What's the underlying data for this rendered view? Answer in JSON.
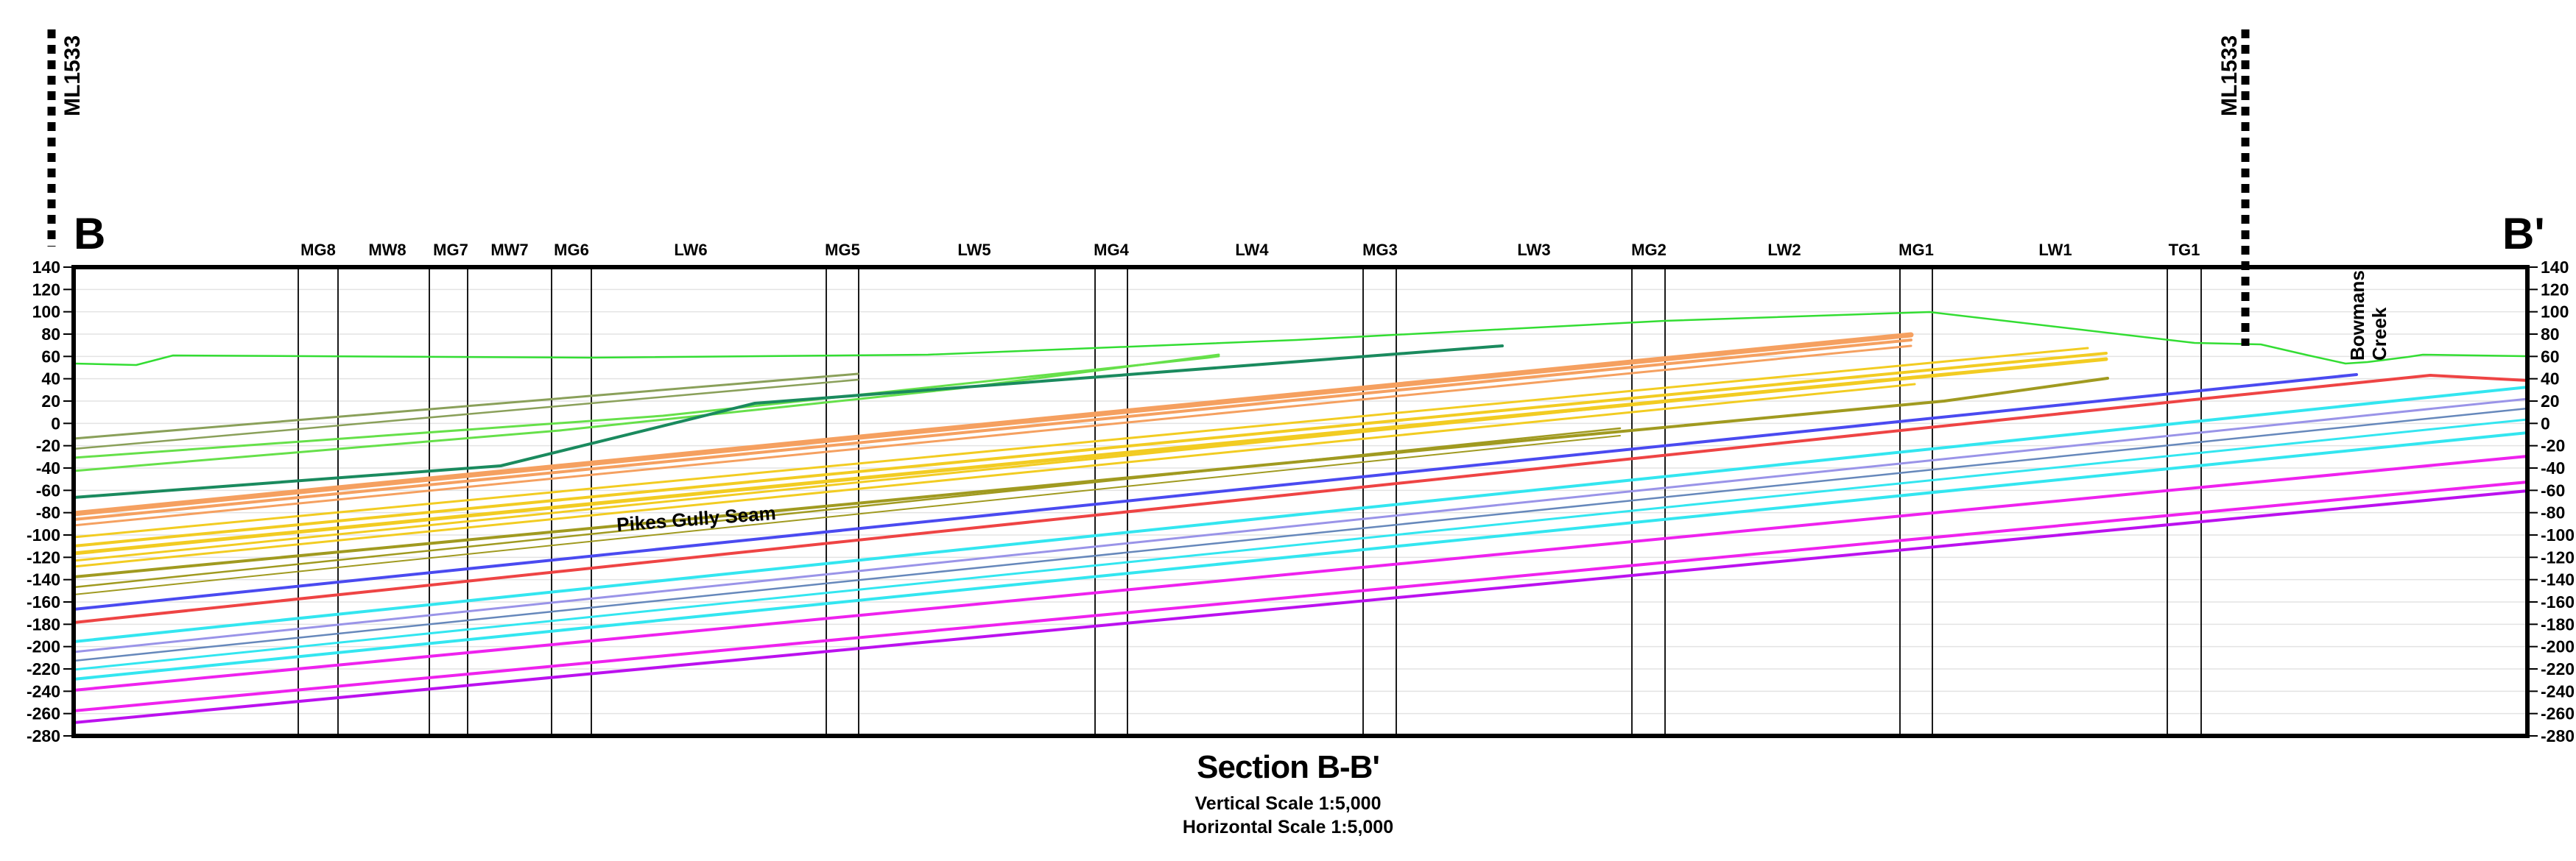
{
  "section": {
    "title": "Section B-B'",
    "vertical_scale": "Vertical Scale 1:5,000",
    "horizontal_scale": "Horizontal Scale 1:5,000",
    "start_label": "B",
    "end_label": "B'"
  },
  "lease_labels": [
    "ML1533",
    "ML1533"
  ],
  "seam_label": "Pikes Gully Seam",
  "creek_label": [
    "Bowmans",
    "Creek"
  ],
  "workings": [
    "MG8",
    "MW8",
    "MG7",
    "MW7",
    "MG6",
    "LW6",
    "MG5",
    "LW5",
    "MG4",
    "LW4",
    "MG3",
    "LW3",
    "MG2",
    "LW2",
    "MG1",
    "LW1",
    "TG1"
  ],
  "axis": {
    "ticks": [
      "140",
      "120",
      "100",
      "80",
      "60",
      "40",
      "20",
      "0",
      "-20",
      "-40",
      "-60",
      "-80",
      "-100",
      "-120",
      "-140",
      "-160",
      "-180",
      "-200",
      "-220",
      "-240",
      "-260",
      "-280"
    ]
  },
  "colors": {
    "surface": "#33dd33",
    "green_light": "#66e04a",
    "green_dark": "#1a8a5e",
    "olive": "#8aa05a",
    "orange": "#f5a060",
    "yellow": "#f2cc22",
    "olive_yellow": "#a09a20",
    "blue": "#4a4af0",
    "red": "#ee4444",
    "cyan": "#33e6f0",
    "lavender": "#9a94e8",
    "steel": "#6688bb",
    "magenta": "#ee22ee",
    "purple": "#bb11ee"
  }
}
